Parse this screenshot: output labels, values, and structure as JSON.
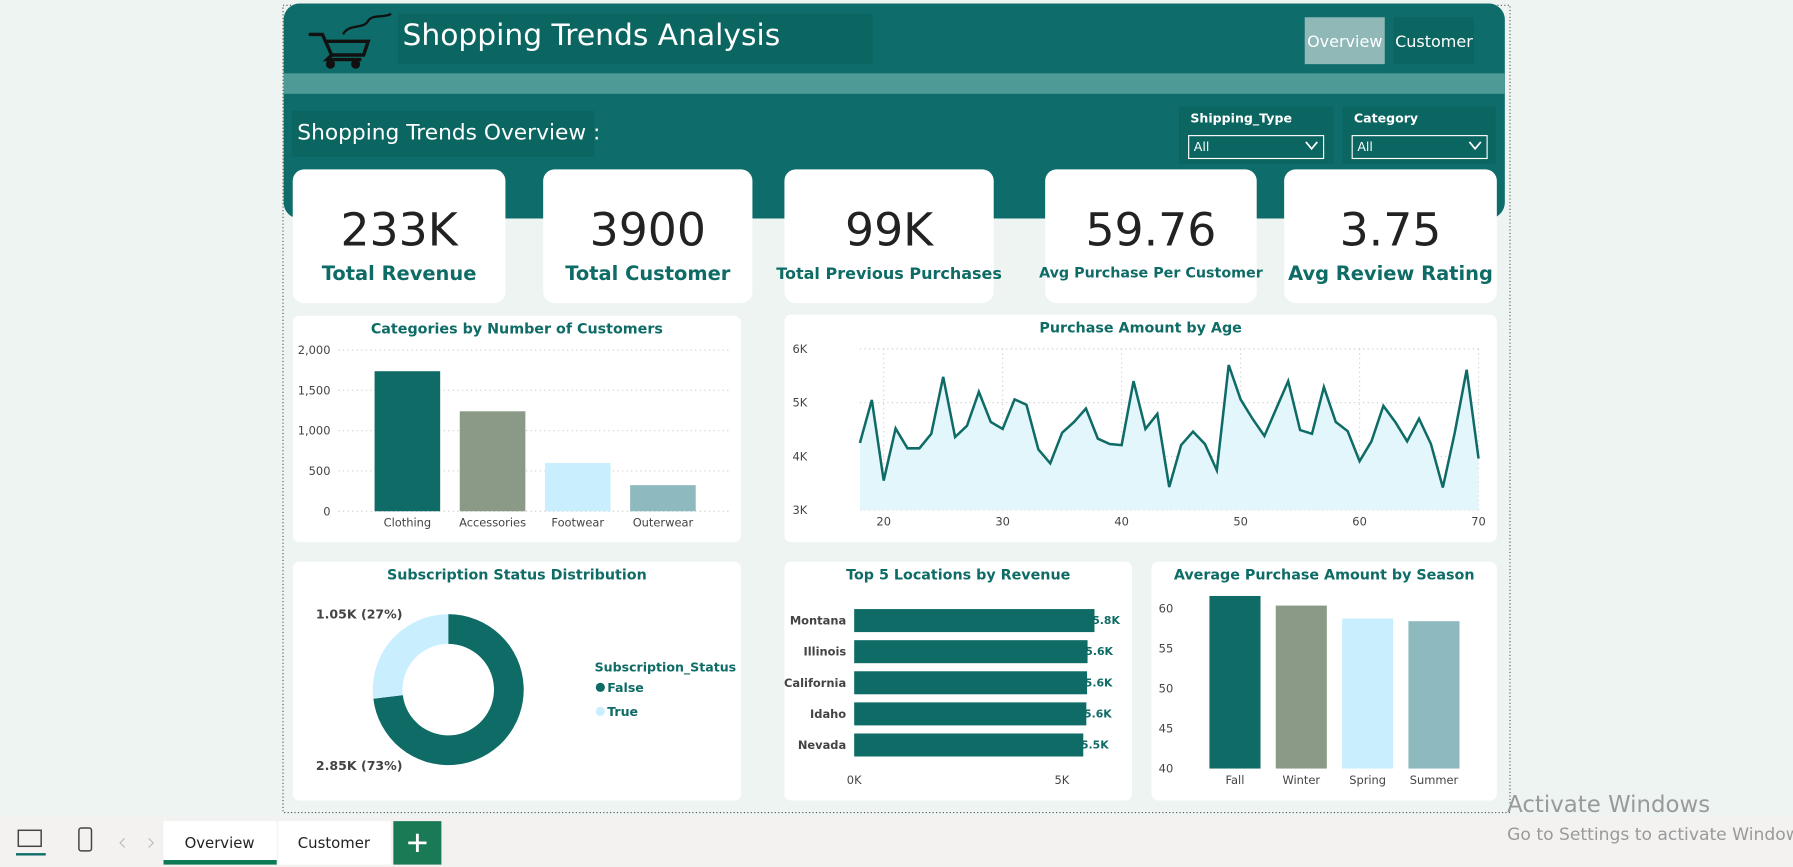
{
  "header": {
    "title": "Shopping Trends Analysis",
    "nav": [
      "Overview",
      "Customer"
    ],
    "subtitle": "Shopping Trends Overview :"
  },
  "filters": [
    {
      "label": "Shipping_Type",
      "value": "All"
    },
    {
      "label": "Category",
      "value": "All"
    }
  ],
  "cards": [
    {
      "value": "233K",
      "label": "Total Revenue"
    },
    {
      "value": "3900",
      "label": "Total Customer"
    },
    {
      "value": "99K",
      "label": "Total Previous Purchases"
    },
    {
      "value": "59.76",
      "label": "Avg Purchase Per Customer"
    },
    {
      "value": "3.75",
      "label": "Avg Review Rating"
    }
  ],
  "chart_data": [
    {
      "type": "bar",
      "title": "Categories by Number of Customers",
      "categories": [
        "Clothing",
        "Accessories",
        "Footwear",
        "Outerwear"
      ],
      "values": [
        1737,
        1240,
        599,
        324
      ],
      "colors": [
        "#0e6b66",
        "#8a9a86",
        "#c9efff",
        "#8eb9bf"
      ],
      "ylim": [
        0,
        2000
      ],
      "yticks": [
        0,
        500,
        {
          "value": 1000,
          "label": "1,000"
        },
        {
          "value": 1500,
          "label": "1,500"
        },
        {
          "value": 2000,
          "label": "2,000"
        }
      ],
      "grid": true
    },
    {
      "type": "line",
      "title": "Purchase Amount by Age",
      "x": [
        18,
        19,
        20,
        21,
        22,
        23,
        24,
        25,
        26,
        27,
        28,
        29,
        30,
        31,
        32,
        33,
        34,
        35,
        36,
        37,
        38,
        39,
        40,
        41,
        42,
        43,
        44,
        45,
        46,
        47,
        48,
        49,
        50,
        51,
        52,
        53,
        54,
        55,
        56,
        57,
        58,
        59,
        60,
        61,
        62,
        63,
        64,
        65,
        66,
        67,
        68,
        69,
        70
      ],
      "values": [
        4250,
        5050,
        3550,
        4520,
        4150,
        4150,
        4420,
        5480,
        4360,
        4570,
        5200,
        4640,
        4510,
        5060,
        4960,
        4130,
        3870,
        4440,
        4640,
        4890,
        4330,
        4230,
        4210,
        5400,
        4510,
        4790,
        3430,
        4210,
        4460,
        4230,
        3740,
        5700,
        5060,
        4700,
        4380,
        4890,
        5400,
        4490,
        4420,
        5290,
        4640,
        4470,
        3910,
        4280,
        4940,
        4640,
        4280,
        4700,
        4230,
        3420,
        4440,
        5610,
        3960
      ],
      "color": "#0e6b66",
      "area_color": "#e3f6fb",
      "xlim": [
        18,
        70
      ],
      "xticks": [
        20,
        30,
        40,
        50,
        60,
        70
      ],
      "ylim": [
        3000,
        6000
      ],
      "yticks": [
        {
          "value": 3000,
          "label": "3K"
        },
        {
          "value": 4000,
          "label": "4K"
        },
        {
          "value": 5000,
          "label": "5K"
        },
        {
          "value": 6000,
          "label": "6K"
        }
      ],
      "grid": true
    },
    {
      "type": "pie",
      "title": "Subscription Status Distribution",
      "legend_title": "Subscription_Status",
      "categories": [
        "False",
        "True"
      ],
      "values": [
        2850,
        1050
      ],
      "value_labels": [
        "2.85K (73%)",
        "1.05K (27%)"
      ],
      "colors": [
        "#0e6b66",
        "#c9efff"
      ],
      "legend": "right"
    },
    {
      "type": "hbar",
      "title": "Top 5 Locations by Revenue",
      "categories": [
        "Montana",
        "Illinois",
        "California",
        "Idaho",
        "Nevada"
      ],
      "values": [
        5784,
        5617,
        5605,
        5587,
        5514
      ],
      "value_labels": [
        "5.8K",
        "5.6K",
        "5.6K",
        "5.6K",
        "5.5K"
      ],
      "color": "#0e6b66",
      "xlim": [
        0,
        6000
      ],
      "xticks": [
        {
          "value": 0,
          "label": "0K"
        },
        {
          "value": 5000,
          "label": "5K"
        }
      ]
    },
    {
      "type": "bar",
      "title": "Average Purchase Amount by Season",
      "categories": [
        "Fall",
        "Winter",
        "Spring",
        "Summer"
      ],
      "values": [
        61.56,
        60.36,
        58.74,
        58.41
      ],
      "colors": [
        "#0e6b66",
        "#8a9a86",
        "#c9efff",
        "#8eb9bf"
      ],
      "ylim": [
        40,
        62
      ],
      "yticks": [
        40,
        45,
        50,
        55,
        60
      ],
      "grid": false
    }
  ],
  "tabs": [
    "Overview",
    "Customer"
  ],
  "watermark": {
    "title": "Activate Windows",
    "text": "Go to Settings to activate Windows."
  }
}
